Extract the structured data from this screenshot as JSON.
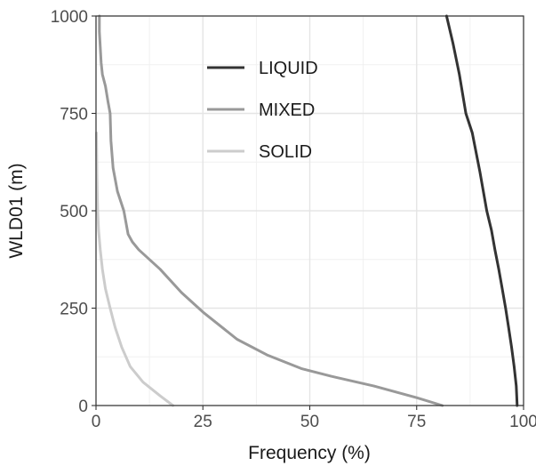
{
  "chart_data": {
    "type": "line",
    "title": "",
    "xlabel": "Frequency (%)",
    "ylabel": "WLD01 (m)",
    "xlim": [
      0,
      100
    ],
    "ylim": [
      0,
      1000
    ],
    "xticks": [
      0,
      25,
      50,
      75,
      100
    ],
    "yticks": [
      0,
      250,
      500,
      750,
      1000
    ],
    "xtick_labels": [
      "0",
      "25",
      "50",
      "75",
      "100"
    ],
    "ytick_labels": [
      "0",
      "250",
      "500",
      "750",
      "1000"
    ],
    "grid": true,
    "legend": "top-center",
    "series": [
      {
        "name": "LIQUID",
        "color": "#333333",
        "x": [
          98.5,
          98.3,
          97.8,
          97.2,
          96.5,
          95.8,
          95.0,
          94.2,
          93.3,
          92.5,
          91.4,
          89.8,
          88.0,
          86.5,
          85.0,
          83.5,
          82.0
        ],
        "y": [
          0,
          50,
          100,
          150,
          200,
          250,
          300,
          350,
          400,
          450,
          500,
          600,
          700,
          750,
          850,
          930,
          1000
        ]
      },
      {
        "name": "MIXED",
        "color": "#999999",
        "x": [
          81.0,
          75.0,
          65.0,
          55.0,
          48.0,
          40.0,
          33.0,
          25.0,
          20.0,
          15.0,
          10.0,
          8.5,
          7.5,
          6.5,
          5.0,
          4.0,
          3.5,
          3.3,
          2.8,
          2.2,
          1.5,
          1.2,
          1.0,
          0.8,
          0.8
        ],
        "y": [
          0,
          20,
          50,
          75,
          95,
          130,
          170,
          240,
          290,
          350,
          400,
          420,
          440,
          500,
          550,
          610,
          680,
          750,
          780,
          820,
          850,
          880,
          920,
          960,
          1000
        ]
      },
      {
        "name": "SOLID",
        "color": "#cccccc",
        "x": [
          18.0,
          15.0,
          11.0,
          8.0,
          6.0,
          4.5,
          3.3,
          2.2,
          1.5,
          1.0,
          0.6,
          0.4,
          0.3,
          0.2,
          0.1
        ],
        "y": [
          0,
          25,
          60,
          100,
          150,
          200,
          250,
          300,
          350,
          400,
          450,
          500,
          550,
          600,
          700
        ]
      }
    ]
  }
}
